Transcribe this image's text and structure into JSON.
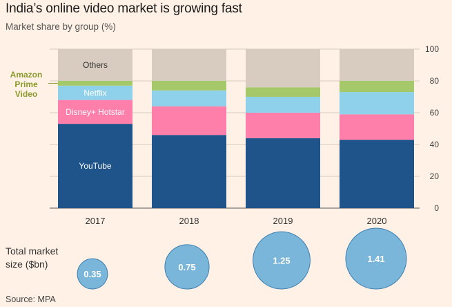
{
  "header": {
    "title": "India’s online video market is growing fast",
    "subtitle": "Market share by group (%)"
  },
  "annotations": {
    "amazon_line1": "Amazon",
    "amazon_line2": "Prime",
    "amazon_line3": "Video",
    "total_size_line1": "Total market",
    "total_size_line2": "size ($bn)"
  },
  "footer": {
    "source": "Source: MPA"
  },
  "colors": {
    "YouTube": "#1f548a",
    "Disney+ Hotstar": "#ff7fab",
    "Netflix": "#8fd1ea",
    "Amazon Prime Video": "#a5c96a",
    "Others": "#d8cbbf",
    "bubble": "#7ab6d9",
    "bubble_stroke": "#3d7fb0",
    "grid": "#d6cbbf"
  },
  "chart_data": [
    {
      "type": "bar",
      "stacked": true,
      "title": "Market share by group (%)",
      "categories": [
        "2017",
        "2018",
        "2019",
        "2020"
      ],
      "ylim": [
        0,
        100
      ],
      "yticks": [
        0,
        20,
        40,
        60,
        80,
        100
      ],
      "series": [
        {
          "name": "YouTube",
          "values": [
            53,
            46,
            44,
            43
          ]
        },
        {
          "name": "Disney+ Hotstar",
          "values": [
            15,
            18,
            16,
            16
          ]
        },
        {
          "name": "Netflix",
          "values": [
            9,
            10,
            10,
            14
          ]
        },
        {
          "name": "Amazon Prime Video",
          "values": [
            3,
            6,
            6,
            7
          ]
        },
        {
          "name": "Others",
          "values": [
            20,
            20,
            24,
            20
          ]
        }
      ],
      "inline_labels": {
        "YouTube": "YouTube",
        "Disney+ Hotstar": "Disney+ Hotstar",
        "Netflix": "Netflix",
        "Others": "Others"
      }
    },
    {
      "type": "scatter",
      "title": "Total market size ($bn)",
      "categories": [
        "2017",
        "2018",
        "2019",
        "2020"
      ],
      "values": [
        0.35,
        0.75,
        1.25,
        1.41
      ],
      "labels": [
        "0.35",
        "0.75",
        "1.25",
        "1.41"
      ]
    }
  ]
}
